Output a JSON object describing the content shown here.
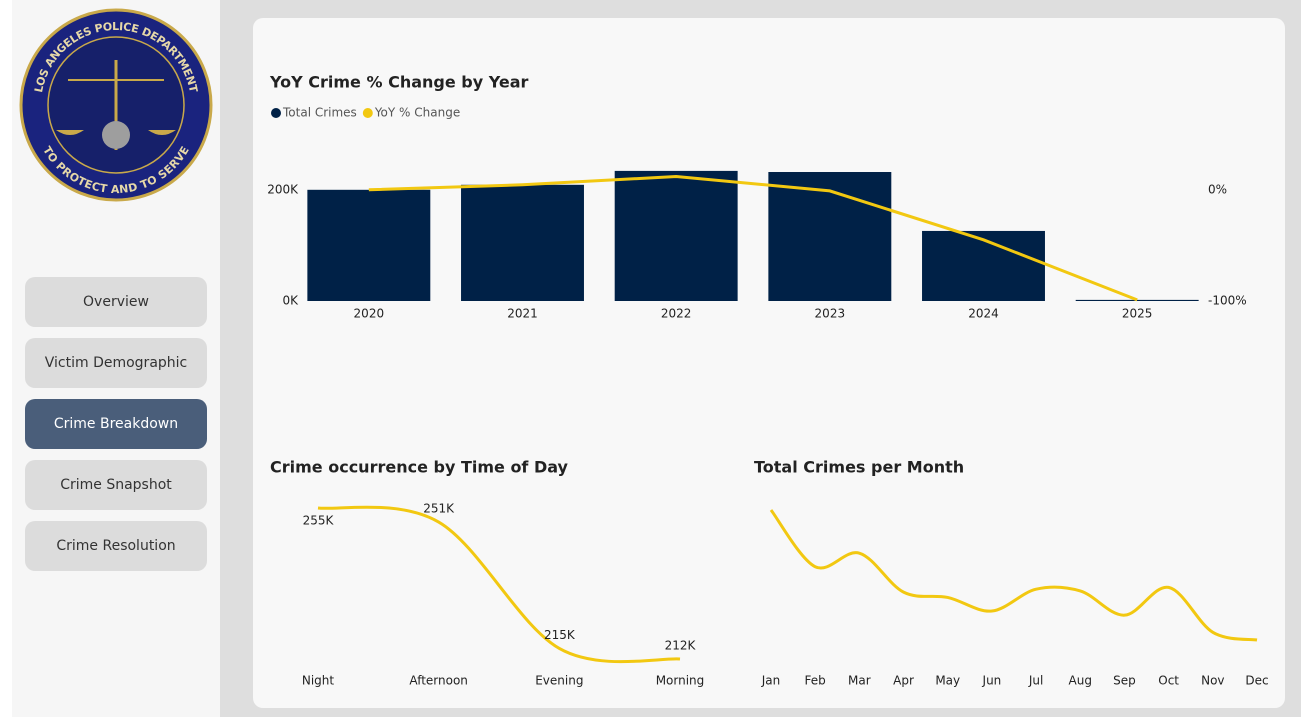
{
  "sidebar": {
    "logo": {
      "top_text": "LOS ANGELES POLICE DEPARTMENT",
      "bottom_text": "TO PROTECT AND TO SERVE"
    },
    "nav": [
      {
        "label": "Overview",
        "active": false
      },
      {
        "label": "Victim Demographic",
        "active": false
      },
      {
        "label": "Crime Breakdown",
        "active": true
      },
      {
        "label": "Crime Snapshot",
        "active": false
      },
      {
        "label": "Crime Resolution",
        "active": false
      }
    ]
  },
  "chart_data": [
    {
      "type": "bar",
      "title": "YoY Crime % Change by Year",
      "categories": [
        "2020",
        "2021",
        "2022",
        "2023",
        "2024",
        "2025"
      ],
      "series": [
        {
          "name": "Total Crimes",
          "type": "bar",
          "color": "#002147",
          "values": [
            200000,
            209000,
            234000,
            232000,
            126000,
            2000
          ]
        },
        {
          "name": "YoY % Change",
          "type": "line",
          "axis": "y2",
          "color": "#f2c811",
          "values": [
            0,
            4.5,
            12,
            -1,
            -45,
            -99
          ]
        }
      ],
      "ylim": [
        0,
        250000
      ],
      "yticks": [
        {
          "value": 0,
          "label": "0K"
        },
        {
          "value": 200000,
          "label": "200K"
        }
      ],
      "y2lim": [
        -100,
        25
      ],
      "y2ticks": [
        {
          "value": 0,
          "label": "0%"
        },
        {
          "value": -100,
          "label": "-100%"
        }
      ],
      "legend": "top-left"
    },
    {
      "type": "line",
      "title": "Crime occurrence by Time of Day",
      "categories": [
        "Night",
        "Afternoon",
        "Evening",
        "Morning"
      ],
      "values": [
        255000,
        251000,
        215000,
        212000
      ],
      "value_labels": [
        "255K",
        "251K",
        "215K",
        "212K"
      ],
      "color": "#f2c811"
    },
    {
      "type": "line",
      "title": "Total Crimes per Month",
      "categories": [
        "Jan",
        "Feb",
        "Mar",
        "Apr",
        "May",
        "Jun",
        "Jul",
        "Aug",
        "Sep",
        "Oct",
        "Nov",
        "Dec"
      ],
      "values": [
        92000,
        82400,
        84700,
        78100,
        77200,
        74900,
        78600,
        78300,
        74200,
        78900,
        71300,
        70000
      ],
      "color": "#f2c811"
    }
  ]
}
